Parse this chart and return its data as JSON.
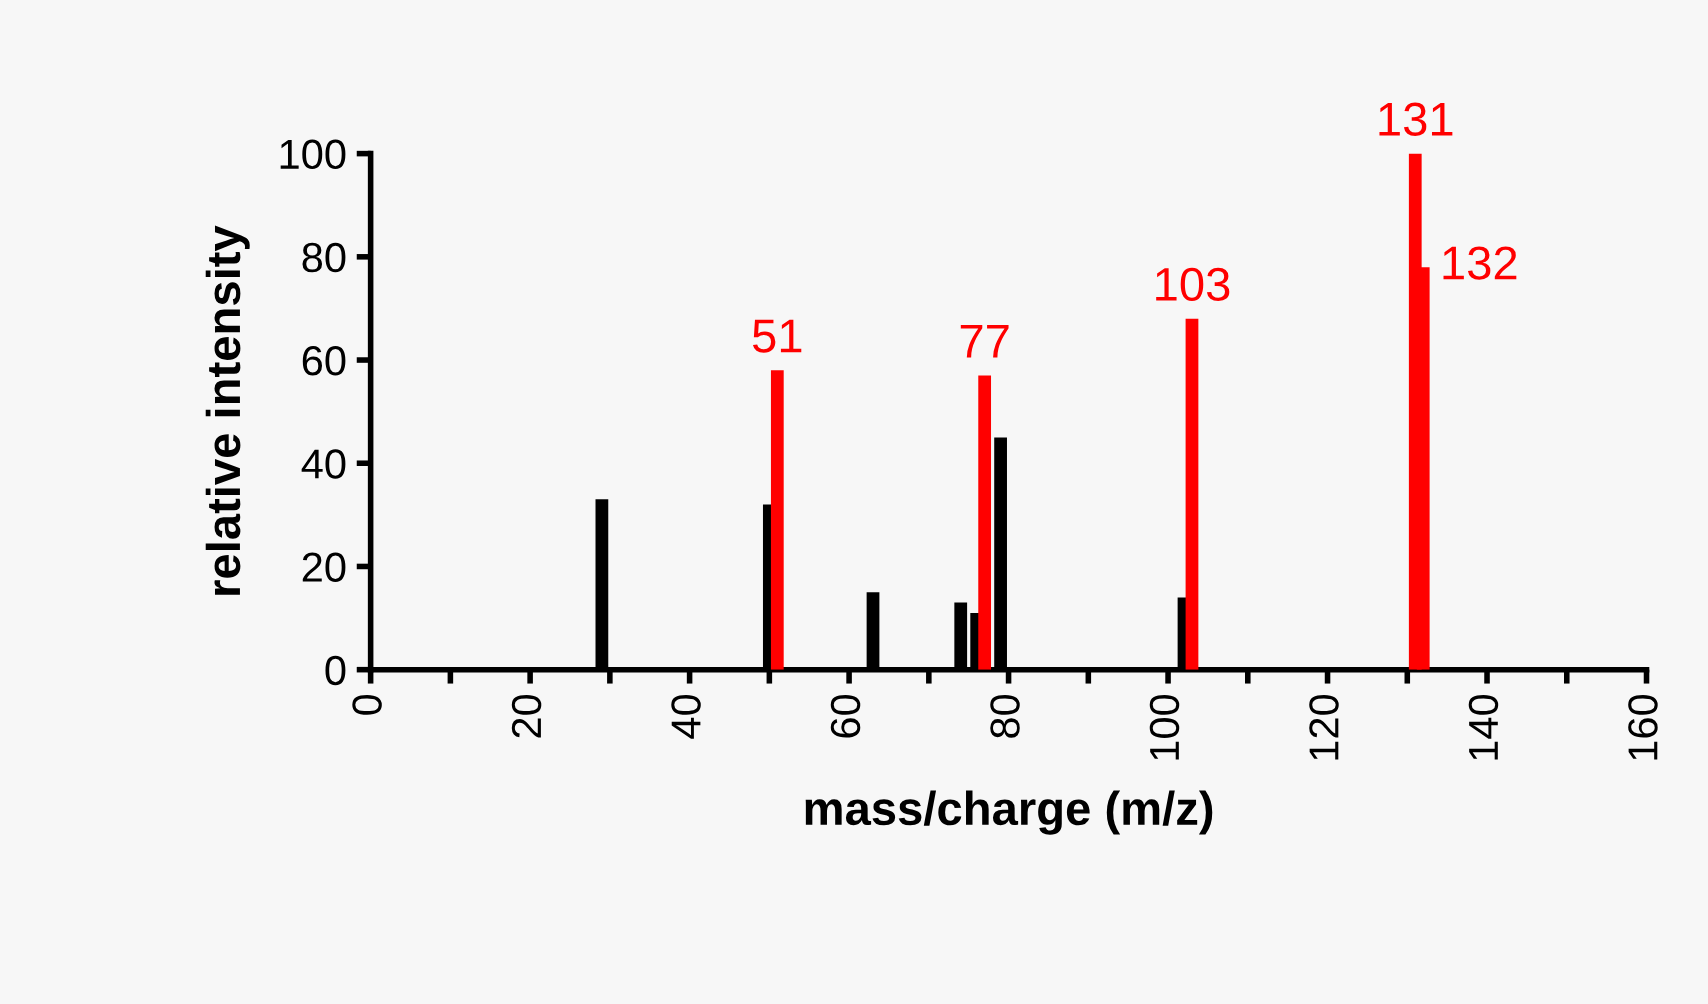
{
  "chart_data": {
    "type": "bar",
    "xlabel": "mass/charge (m/z)",
    "ylabel": "relative intensity",
    "series": [
      {
        "color": "#000000",
        "x": [
          29,
          50,
          63,
          74,
          76,
          79,
          102
        ],
        "values": [
          33,
          32,
          15,
          13,
          11,
          45,
          14
        ]
      },
      {
        "color": "#ff0000",
        "x": [
          51,
          77,
          103,
          131,
          132
        ],
        "values": [
          58,
          57,
          68,
          100,
          78
        ]
      }
    ],
    "annotations": [
      {
        "text": "51",
        "x": 51,
        "y": 58
      },
      {
        "text": "77",
        "x": 77,
        "y": 57
      },
      {
        "text": "103",
        "x": 103,
        "y": 68
      },
      {
        "text": "131",
        "x": 131,
        "y": 100
      },
      {
        "text": "132",
        "x": 132,
        "y": 78
      }
    ],
    "xlim": [
      0,
      160
    ],
    "xticks": [
      0,
      {
        "value": 10,
        "label": null
      },
      20,
      {
        "value": 30,
        "label": null
      },
      40,
      {
        "value": 50,
        "label": null
      },
      60,
      {
        "value": 70,
        "label": null
      },
      80,
      {
        "value": 90,
        "label": null
      },
      100,
      {
        "value": 110,
        "label": null
      },
      120,
      {
        "value": 130,
        "label": null
      },
      140,
      {
        "value": 150,
        "label": null
      },
      160
    ],
    "ylim": [
      0,
      100
    ],
    "yticks": [
      0,
      20,
      40,
      60,
      80,
      100
    ],
    "grid": false,
    "legend": false
  }
}
